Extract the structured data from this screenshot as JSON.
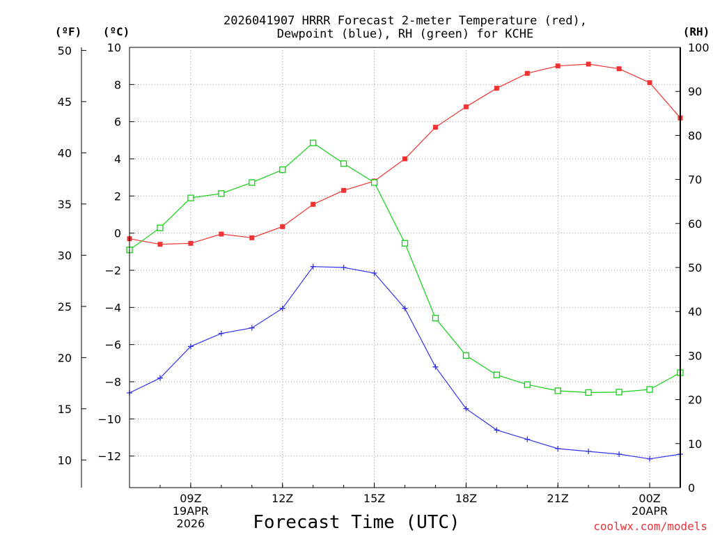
{
  "chart_data": {
    "type": "line",
    "title_line1": "2026041907 HRRR Forecast 2-meter Temperature (red),",
    "title_line2": "Dewpoint (blue), RH (green) for KCHE",
    "xlabel": "Forecast Time (UTC)",
    "credit": "coolwx.com/models",
    "left_outer_axis": {
      "unit_label": "(ºF)",
      "ylim": [
        7.3,
        50.3
      ],
      "ticks": [
        50,
        45,
        40,
        35,
        30,
        25,
        20,
        15,
        10
      ]
    },
    "left_inner_axis": {
      "unit_label": "(ºC)",
      "ylim": [
        -13.7,
        10
      ],
      "ticks": [
        10,
        8,
        6,
        4,
        2,
        0,
        -2,
        -4,
        -6,
        -8,
        -10,
        -12
      ]
    },
    "right_axis": {
      "unit_label": "(RH)",
      "ylim": [
        0,
        100
      ],
      "ticks": [
        100,
        90,
        80,
        70,
        60,
        50,
        40,
        30,
        20,
        10,
        0
      ]
    },
    "xlim": [
      7,
      25
    ],
    "x_ticks": [
      {
        "x": 9,
        "line1": "09Z",
        "line2": "19APR",
        "line3": "2026"
      },
      {
        "x": 12,
        "line1": "12Z"
      },
      {
        "x": 15,
        "line1": "15Z"
      },
      {
        "x": 18,
        "line1": "18Z"
      },
      {
        "x": 21,
        "line1": "21Z"
      },
      {
        "x": 24,
        "line1": "00Z",
        "line2": "20APR"
      }
    ],
    "x": [
      7,
      8,
      9,
      10,
      11,
      12,
      13,
      14,
      15,
      16,
      17,
      18,
      19,
      20,
      21,
      22,
      23,
      24,
      25
    ],
    "series": [
      {
        "name": "2-meter Temperature",
        "axis": "C",
        "color": "#f03232",
        "marker": "filled-square",
        "values": [
          -0.3,
          -0.6,
          -0.55,
          -0.05,
          -0.25,
          0.35,
          1.55,
          2.3,
          2.8,
          4.0,
          5.7,
          6.8,
          7.8,
          8.6,
          9.0,
          9.1,
          8.85,
          8.1,
          6.2
        ]
      },
      {
        "name": "Dewpoint",
        "axis": "C",
        "color": "#3232f0",
        "marker": "plus",
        "values": [
          -8.6,
          -7.8,
          -6.1,
          -5.4,
          -5.1,
          -4.05,
          -1.8,
          -1.85,
          -2.15,
          -4.05,
          -7.2,
          -9.45,
          -10.6,
          -11.1,
          -11.6,
          -11.75,
          -11.9,
          -12.15,
          -11.9
        ]
      },
      {
        "name": "RH",
        "axis": "RH",
        "color": "#10d010",
        "marker": "open-square",
        "values": [
          54,
          59,
          65.8,
          66.8,
          69.3,
          72.2,
          78.3,
          73.6,
          69.3,
          55.5,
          38.5,
          30,
          25.6,
          23.4,
          22,
          21.6,
          21.7,
          22.3,
          26.1
        ]
      }
    ]
  }
}
